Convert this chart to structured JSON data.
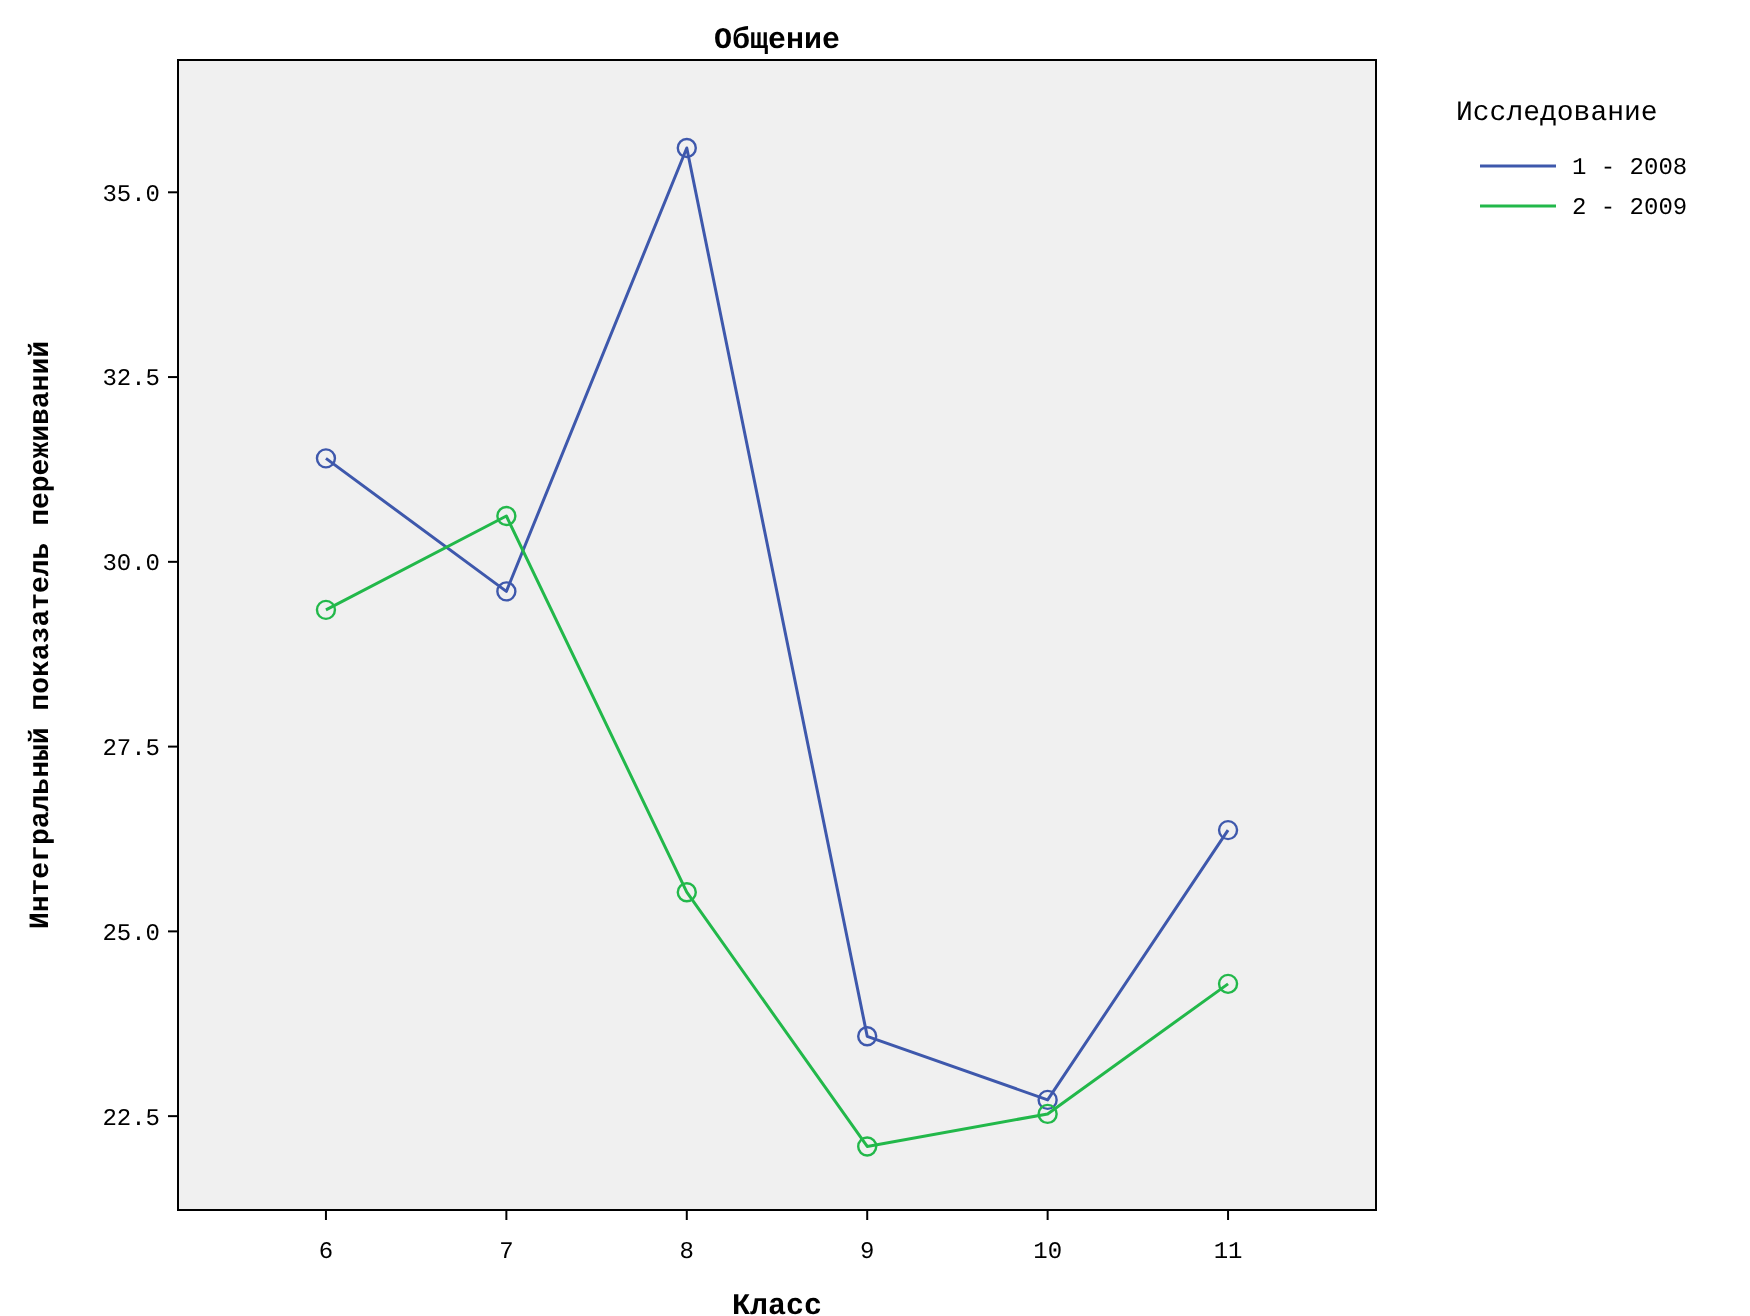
{
  "chart_data": {
    "type": "line",
    "title": "Общение",
    "xlabel": "Класс",
    "ylabel": "Интегральный показатель переживаний",
    "legend_title": "Исследование",
    "categories": [
      "6",
      "7",
      "8",
      "9",
      "10",
      "11"
    ],
    "series": [
      {
        "name": "1 - 2008",
        "color": "#3e58ac",
        "values": [
          31.4,
          29.6,
          35.6,
          23.58,
          22.72,
          26.37
        ]
      },
      {
        "name": "2 - 2009",
        "color": "#22b84a",
        "values": [
          29.35,
          30.62,
          25.53,
          22.09,
          22.53,
          24.29
        ]
      }
    ],
    "ylim": [
      21.23,
      36.79
    ],
    "yticks": [
      {
        "value": 22.5,
        "label": "22.5"
      },
      {
        "value": 25,
        "label": "25.0"
      },
      {
        "value": 27.5,
        "label": "27.5"
      },
      {
        "value": 30,
        "label": "30.0"
      },
      {
        "value": 32.5,
        "label": "32.5"
      },
      {
        "value": 35,
        "label": "35.0"
      }
    ],
    "grid": false,
    "legend": "top right",
    "marker": "circle",
    "line_style": "solid"
  }
}
